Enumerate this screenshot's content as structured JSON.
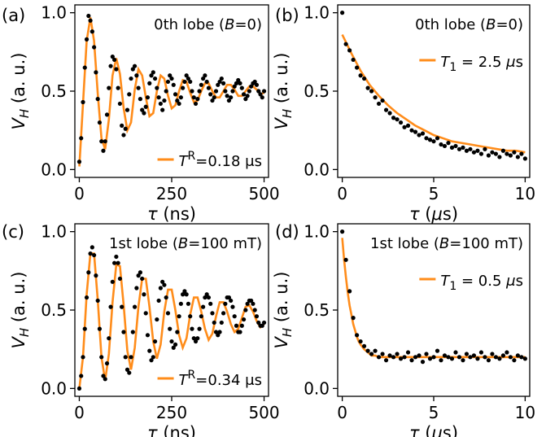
{
  "chart_data": [
    {
      "panel": "(a)",
      "type": "scatter",
      "annotation": "0th lobe (B = 0)",
      "legend": "T^R = 0.18 μs",
      "fit": {
        "model": "damped_cosine",
        "T_R_us": 0.18
      },
      "xlabel": "τ (ns)",
      "ylabel": "V_H (a. u.)",
      "xlim": [
        -12,
        512
      ],
      "ylim": [
        -0.05,
        1.05
      ],
      "xticks": [
        0,
        250,
        500
      ],
      "yticks": [
        0.0,
        0.5,
        1.0
      ],
      "xtick_labels": [
        "0",
        "250",
        "500"
      ],
      "ytick_labels": [
        "0.0",
        "0.5",
        "1.0"
      ],
      "series": [
        {
          "kind": "points",
          "color": "#000000",
          "x": [
            0,
            5,
            10,
            15,
            20,
            25,
            30,
            35,
            40,
            45,
            50,
            55,
            60,
            65,
            70,
            75,
            80,
            85,
            90,
            95,
            100,
            105,
            110,
            115,
            120,
            125,
            130,
            135,
            140,
            145,
            150,
            155,
            160,
            165,
            170,
            175,
            180,
            185,
            190,
            195,
            200,
            205,
            210,
            215,
            220,
            225,
            230,
            235,
            240,
            245,
            250,
            255,
            260,
            265,
            270,
            275,
            280,
            285,
            290,
            295,
            300,
            305,
            310,
            315,
            320,
            325,
            330,
            335,
            340,
            345,
            350,
            355,
            360,
            365,
            370,
            375,
            380,
            385,
            390,
            395,
            400,
            405,
            410,
            415,
            420,
            425,
            430,
            435,
            440,
            445,
            450,
            455,
            460,
            465,
            470,
            475,
            480,
            485,
            490,
            495,
            500
          ],
          "y": [
            0.05,
            0.2,
            0.43,
            0.65,
            0.83,
            0.98,
            0.95,
            0.88,
            0.78,
            0.62,
            0.45,
            0.3,
            0.18,
            0.12,
            0.18,
            0.35,
            0.52,
            0.66,
            0.72,
            0.7,
            0.64,
            0.52,
            0.42,
            0.28,
            0.22,
            0.26,
            0.38,
            0.48,
            0.58,
            0.64,
            0.66,
            0.6,
            0.52,
            0.45,
            0.38,
            0.36,
            0.4,
            0.46,
            0.55,
            0.6,
            0.62,
            0.58,
            0.52,
            0.46,
            0.42,
            0.38,
            0.44,
            0.5,
            0.56,
            0.6,
            0.58,
            0.54,
            0.48,
            0.44,
            0.42,
            0.46,
            0.52,
            0.56,
            0.6,
            0.58,
            0.56,
            0.5,
            0.46,
            0.42,
            0.45,
            0.5,
            0.54,
            0.58,
            0.6,
            0.56,
            0.52,
            0.48,
            0.44,
            0.46,
            0.5,
            0.54,
            0.56,
            0.58,
            0.55,
            0.5,
            0.47,
            0.44,
            0.46,
            0.5,
            0.53,
            0.55,
            0.57,
            0.55,
            0.52,
            0.48,
            0.45,
            0.47,
            0.5,
            0.53,
            0.55,
            0.56,
            0.54,
            0.5,
            0.48,
            0.46,
            0.5
          ]
        },
        {
          "kind": "fit",
          "color": "#ff8c1a",
          "x": [
            0,
            10,
            20,
            30,
            40,
            50,
            60,
            70,
            80,
            90,
            100,
            110,
            120,
            130,
            140,
            150,
            160,
            170,
            180,
            190,
            200,
            210,
            220,
            230,
            240,
            250,
            260,
            270,
            280,
            290,
            300,
            310,
            320,
            330,
            340,
            350,
            360,
            370,
            380,
            390,
            400,
            410,
            420,
            430,
            440,
            450,
            460,
            470,
            480,
            490,
            500
          ],
          "y": [
            0.02,
            0.42,
            0.82,
            0.97,
            0.82,
            0.48,
            0.2,
            0.13,
            0.32,
            0.6,
            0.71,
            0.61,
            0.39,
            0.25,
            0.3,
            0.51,
            0.64,
            0.6,
            0.46,
            0.34,
            0.36,
            0.5,
            0.6,
            0.58,
            0.47,
            0.39,
            0.41,
            0.5,
            0.57,
            0.56,
            0.49,
            0.43,
            0.44,
            0.5,
            0.55,
            0.55,
            0.5,
            0.46,
            0.46,
            0.5,
            0.54,
            0.54,
            0.51,
            0.47,
            0.47,
            0.5,
            0.53,
            0.53,
            0.51,
            0.48,
            0.49
          ]
        }
      ]
    },
    {
      "panel": "(b)",
      "type": "scatter",
      "annotation": "0th lobe (B = 0)",
      "legend": "T_1 = 2.5 μs",
      "fit": {
        "model": "exponential_decay",
        "T1_us": 2.5
      },
      "xlabel": "τ (μs)",
      "ylabel": "V_H (a. u.)",
      "xlim": [
        -0.25,
        10.25
      ],
      "ylim": [
        -0.05,
        1.05
      ],
      "xticks": [
        0,
        5,
        10
      ],
      "yticks": [
        0.0,
        0.5,
        1.0
      ],
      "xtick_labels": [
        "0",
        "5",
        "10"
      ],
      "ytick_labels": [
        "0.0",
        "0.5",
        "1.0"
      ],
      "series": [
        {
          "kind": "points",
          "color": "#000000",
          "x": [
            0,
            0.2,
            0.4,
            0.6,
            0.8,
            1.0,
            1.2,
            1.4,
            1.6,
            1.8,
            2.0,
            2.2,
            2.4,
            2.6,
            2.8,
            3.0,
            3.2,
            3.4,
            3.6,
            3.8,
            4.0,
            4.2,
            4.4,
            4.6,
            4.8,
            5.0,
            5.2,
            5.4,
            5.6,
            5.8,
            6.0,
            6.2,
            6.4,
            6.6,
            6.8,
            7.0,
            7.2,
            7.4,
            7.6,
            7.8,
            8.0,
            8.2,
            8.4,
            8.6,
            8.8,
            9.0,
            9.2,
            9.4,
            9.6,
            9.8,
            10.0
          ],
          "y": [
            1.0,
            0.8,
            0.76,
            0.7,
            0.65,
            0.6,
            0.58,
            0.52,
            0.5,
            0.46,
            0.42,
            0.44,
            0.38,
            0.36,
            0.33,
            0.32,
            0.3,
            0.27,
            0.28,
            0.25,
            0.24,
            0.22,
            0.23,
            0.2,
            0.19,
            0.18,
            0.2,
            0.16,
            0.15,
            0.17,
            0.14,
            0.15,
            0.13,
            0.14,
            0.12,
            0.13,
            0.11,
            0.12,
            0.1,
            0.13,
            0.09,
            0.11,
            0.1,
            0.08,
            0.12,
            0.1,
            0.09,
            0.11,
            0.08,
            0.1,
            0.07
          ]
        },
        {
          "kind": "fit",
          "color": "#ff8c1a",
          "x": [
            0,
            0.5,
            1,
            1.5,
            2,
            2.5,
            3,
            3.5,
            4,
            4.5,
            5,
            5.5,
            6,
            6.5,
            7,
            7.5,
            8,
            8.5,
            9,
            9.5,
            10
          ],
          "y": [
            0.86,
            0.74,
            0.63,
            0.54,
            0.47,
            0.41,
            0.36,
            0.32,
            0.28,
            0.25,
            0.22,
            0.2,
            0.18,
            0.17,
            0.16,
            0.15,
            0.14,
            0.13,
            0.12,
            0.12,
            0.11
          ]
        }
      ]
    },
    {
      "panel": "(c)",
      "type": "scatter",
      "annotation": "1st lobe (B = 100 mT)",
      "legend": "T^R = 0.34 μs",
      "fit": {
        "model": "damped_cosine",
        "T_R_us": 0.34
      },
      "xlabel": "τ (ns)",
      "ylabel": "V_H (a. u.)",
      "xlim": [
        -12,
        512
      ],
      "ylim": [
        -0.05,
        1.05
      ],
      "xticks": [
        0,
        250,
        500
      ],
      "yticks": [
        0.0,
        0.5,
        1.0
      ],
      "xtick_labels": [
        "0",
        "250",
        "500"
      ],
      "ytick_labels": [
        "0.0",
        "0.5",
        "1.0"
      ],
      "series": [
        {
          "kind": "points",
          "color": "#000000",
          "x": [
            0,
            5,
            10,
            15,
            20,
            25,
            30,
            35,
            40,
            45,
            50,
            55,
            60,
            65,
            70,
            75,
            80,
            85,
            90,
            95,
            100,
            105,
            110,
            115,
            120,
            125,
            130,
            135,
            140,
            145,
            150,
            155,
            160,
            165,
            170,
            175,
            180,
            185,
            190,
            195,
            200,
            205,
            210,
            215,
            220,
            225,
            230,
            235,
            240,
            245,
            250,
            255,
            260,
            265,
            270,
            275,
            280,
            285,
            290,
            295,
            300,
            305,
            310,
            315,
            320,
            325,
            330,
            335,
            340,
            345,
            350,
            355,
            360,
            365,
            370,
            375,
            380,
            385,
            390,
            395,
            400,
            405,
            410,
            415,
            420,
            425,
            430,
            435,
            440,
            445,
            450,
            455,
            460,
            465,
            470,
            475,
            480,
            485,
            490,
            495,
            500
          ],
          "y": [
            0.0,
            0.08,
            0.2,
            0.38,
            0.58,
            0.74,
            0.86,
            0.9,
            0.85,
            0.72,
            0.56,
            0.38,
            0.2,
            0.08,
            0.06,
            0.16,
            0.32,
            0.52,
            0.68,
            0.8,
            0.84,
            0.8,
            0.7,
            0.52,
            0.36,
            0.2,
            0.12,
            0.1,
            0.2,
            0.36,
            0.52,
            0.64,
            0.72,
            0.74,
            0.7,
            0.6,
            0.48,
            0.34,
            0.24,
            0.18,
            0.2,
            0.3,
            0.44,
            0.56,
            0.64,
            0.68,
            0.66,
            0.58,
            0.48,
            0.38,
            0.3,
            0.26,
            0.28,
            0.36,
            0.46,
            0.54,
            0.6,
            0.62,
            0.6,
            0.54,
            0.46,
            0.38,
            0.32,
            0.3,
            0.32,
            0.38,
            0.46,
            0.52,
            0.58,
            0.6,
            0.58,
            0.54,
            0.48,
            0.42,
            0.36,
            0.34,
            0.36,
            0.42,
            0.48,
            0.54,
            0.58,
            0.58,
            0.56,
            0.52,
            0.46,
            0.4,
            0.36,
            0.36,
            0.4,
            0.44,
            0.5,
            0.54,
            0.56,
            0.56,
            0.54,
            0.5,
            0.46,
            0.42,
            0.4,
            0.4,
            0.42
          ]
        },
        {
          "kind": "fit",
          "color": "#ff8c1a",
          "x": [
            0,
            10,
            20,
            30,
            40,
            50,
            60,
            70,
            80,
            90,
            100,
            110,
            120,
            130,
            140,
            150,
            160,
            170,
            180,
            190,
            200,
            210,
            220,
            230,
            240,
            250,
            260,
            270,
            280,
            290,
            300,
            310,
            320,
            330,
            340,
            350,
            360,
            370,
            380,
            390,
            400,
            410,
            420,
            430,
            440,
            450,
            460,
            470,
            480,
            490,
            500
          ],
          "y": [
            0.0,
            0.2,
            0.6,
            0.86,
            0.86,
            0.56,
            0.2,
            0.05,
            0.22,
            0.55,
            0.79,
            0.78,
            0.53,
            0.24,
            0.12,
            0.26,
            0.52,
            0.7,
            0.7,
            0.52,
            0.3,
            0.19,
            0.28,
            0.49,
            0.63,
            0.63,
            0.5,
            0.34,
            0.26,
            0.32,
            0.47,
            0.58,
            0.58,
            0.49,
            0.38,
            0.31,
            0.35,
            0.46,
            0.55,
            0.55,
            0.49,
            0.41,
            0.36,
            0.38,
            0.45,
            0.52,
            0.53,
            0.49,
            0.43,
            0.39,
            0.41
          ]
        }
      ]
    },
    {
      "panel": "(d)",
      "type": "scatter",
      "annotation": "1st lobe (B = 100 mT)",
      "legend": "T_1 = 0.5 μs",
      "fit": {
        "model": "exponential_decay",
        "T1_us": 0.5
      },
      "xlabel": "τ (μs)",
      "ylabel": "V_H (a. u.)",
      "xlim": [
        -0.25,
        10.25
      ],
      "ylim": [
        -0.05,
        1.05
      ],
      "xticks": [
        0,
        5,
        10
      ],
      "yticks": [
        0.0,
        0.5,
        1.0
      ],
      "xtick_labels": [
        "0",
        "5",
        "10"
      ],
      "ytick_labels": [
        "0.0",
        "0.5",
        "1.0"
      ],
      "series": [
        {
          "kind": "points",
          "color": "#000000",
          "x": [
            0,
            0.2,
            0.4,
            0.6,
            0.8,
            1.0,
            1.2,
            1.4,
            1.6,
            1.8,
            2.0,
            2.2,
            2.4,
            2.6,
            2.8,
            3.0,
            3.2,
            3.4,
            3.6,
            3.8,
            4.0,
            4.2,
            4.4,
            4.6,
            4.8,
            5.0,
            5.2,
            5.4,
            5.6,
            5.8,
            6.0,
            6.2,
            6.4,
            6.6,
            6.8,
            7.0,
            7.2,
            7.4,
            7.6,
            7.8,
            8.0,
            8.2,
            8.4,
            8.6,
            8.8,
            9.0,
            9.2,
            9.4,
            9.6,
            9.8,
            10.0
          ],
          "y": [
            1.0,
            0.82,
            0.62,
            0.45,
            0.34,
            0.3,
            0.27,
            0.24,
            0.22,
            0.24,
            0.2,
            0.22,
            0.18,
            0.21,
            0.2,
            0.22,
            0.19,
            0.2,
            0.23,
            0.18,
            0.2,
            0.21,
            0.17,
            0.22,
            0.19,
            0.2,
            0.24,
            0.18,
            0.21,
            0.2,
            0.19,
            0.23,
            0.2,
            0.18,
            0.22,
            0.2,
            0.21,
            0.19,
            0.23,
            0.2,
            0.18,
            0.22,
            0.2,
            0.19,
            0.21,
            0.23,
            0.2,
            0.18,
            0.21,
            0.2,
            0.19
          ]
        },
        {
          "kind": "fit",
          "color": "#ff8c1a",
          "x": [
            0,
            0.1,
            0.2,
            0.3,
            0.4,
            0.5,
            0.6,
            0.7,
            0.8,
            0.9,
            1.0,
            1.2,
            1.4,
            1.6,
            1.8,
            2.0,
            2.5,
            3,
            4,
            5,
            6,
            7,
            8,
            9,
            10
          ],
          "y": [
            0.96,
            0.82,
            0.71,
            0.61,
            0.53,
            0.47,
            0.41,
            0.37,
            0.33,
            0.3,
            0.28,
            0.25,
            0.23,
            0.21,
            0.21,
            0.2,
            0.2,
            0.2,
            0.2,
            0.2,
            0.2,
            0.2,
            0.2,
            0.2,
            0.2
          ]
        }
      ]
    }
  ]
}
